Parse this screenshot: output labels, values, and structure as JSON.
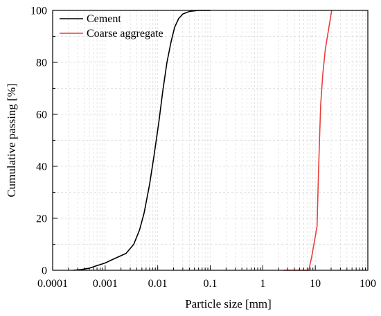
{
  "chart_data": {
    "type": "line",
    "title": "",
    "xlabel": "Particle size [mm]",
    "ylabel": "Cumulative passing [%]",
    "x_scale": "log",
    "xlim": [
      0.0001,
      100
    ],
    "ylim": [
      0,
      100
    ],
    "x_ticks": [
      0.0001,
      0.001,
      0.01,
      0.1,
      1,
      10,
      100
    ],
    "x_tick_labels": [
      "0.0001",
      "0.001",
      "0.01",
      "0.1",
      "1",
      "10",
      "100"
    ],
    "y_ticks": [
      0,
      20,
      40,
      60,
      80,
      100
    ],
    "y_tick_labels": [
      "0",
      "20",
      "40",
      "60",
      "80",
      "100"
    ],
    "grid": true,
    "legend": "top-left",
    "series": [
      {
        "name": "Cement",
        "color": "#000000",
        "points": [
          [
            0.00025,
            0
          ],
          [
            0.00035,
            0.3
          ],
          [
            0.0005,
            0.8
          ],
          [
            0.0007,
            1.8
          ],
          [
            0.001,
            2.8
          ],
          [
            0.0013,
            3.9
          ],
          [
            0.0018,
            5.2
          ],
          [
            0.0025,
            6.5
          ],
          [
            0.0035,
            10
          ],
          [
            0.0045,
            15.5
          ],
          [
            0.0055,
            22
          ],
          [
            0.007,
            33
          ],
          [
            0.0085,
            44
          ],
          [
            0.0105,
            57
          ],
          [
            0.0125,
            69
          ],
          [
            0.015,
            80
          ],
          [
            0.018,
            88
          ],
          [
            0.021,
            93.5
          ],
          [
            0.025,
            96.8
          ],
          [
            0.03,
            98.6
          ],
          [
            0.04,
            99.6
          ],
          [
            0.06,
            100
          ],
          [
            0.1,
            100
          ]
        ]
      },
      {
        "name": "Coarse aggregate",
        "color": "#e8403a",
        "points": [
          [
            2.5,
            0
          ],
          [
            7.5,
            0
          ],
          [
            8.5,
            5
          ],
          [
            10.2,
            14
          ],
          [
            10.8,
            17
          ],
          [
            11.4,
            35
          ],
          [
            12.0,
            50
          ],
          [
            12.7,
            64
          ],
          [
            13.8,
            75
          ],
          [
            15.5,
            85
          ],
          [
            18,
            93
          ],
          [
            20.5,
            100
          ]
        ]
      }
    ]
  }
}
